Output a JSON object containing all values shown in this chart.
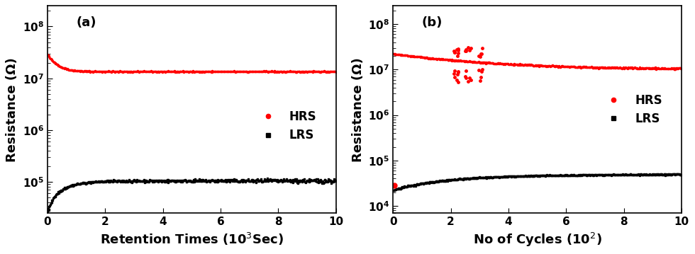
{
  "panel_a": {
    "label": "(a)",
    "xlabel": "Retention Times (10$^3$Sec)",
    "ylabel": "Resistance (Ω)",
    "xlim": [
      0,
      10
    ],
    "ylim_log": [
      25000.0,
      250000000.0
    ],
    "xticks": [
      0,
      2,
      4,
      6,
      8,
      10
    ],
    "HRS_color": "#ff0000",
    "LRS_color": "#000000"
  },
  "panel_b": {
    "label": "(b)",
    "xlabel": "No of Cycles (10$^2$)",
    "ylabel": "Resistance (Ω)",
    "xlim": [
      0,
      10
    ],
    "ylim_log": [
      7000.0,
      250000000.0
    ],
    "xticks": [
      0,
      2,
      4,
      6,
      8,
      10
    ],
    "HRS_color": "#ff0000",
    "LRS_color": "#000000"
  },
  "background_color": "#ffffff",
  "legend_HRS_label": "HRS",
  "legend_LRS_label": "LRS",
  "title_fontsize": 13,
  "label_fontsize": 13,
  "tick_fontsize": 11,
  "legend_fontsize": 12
}
